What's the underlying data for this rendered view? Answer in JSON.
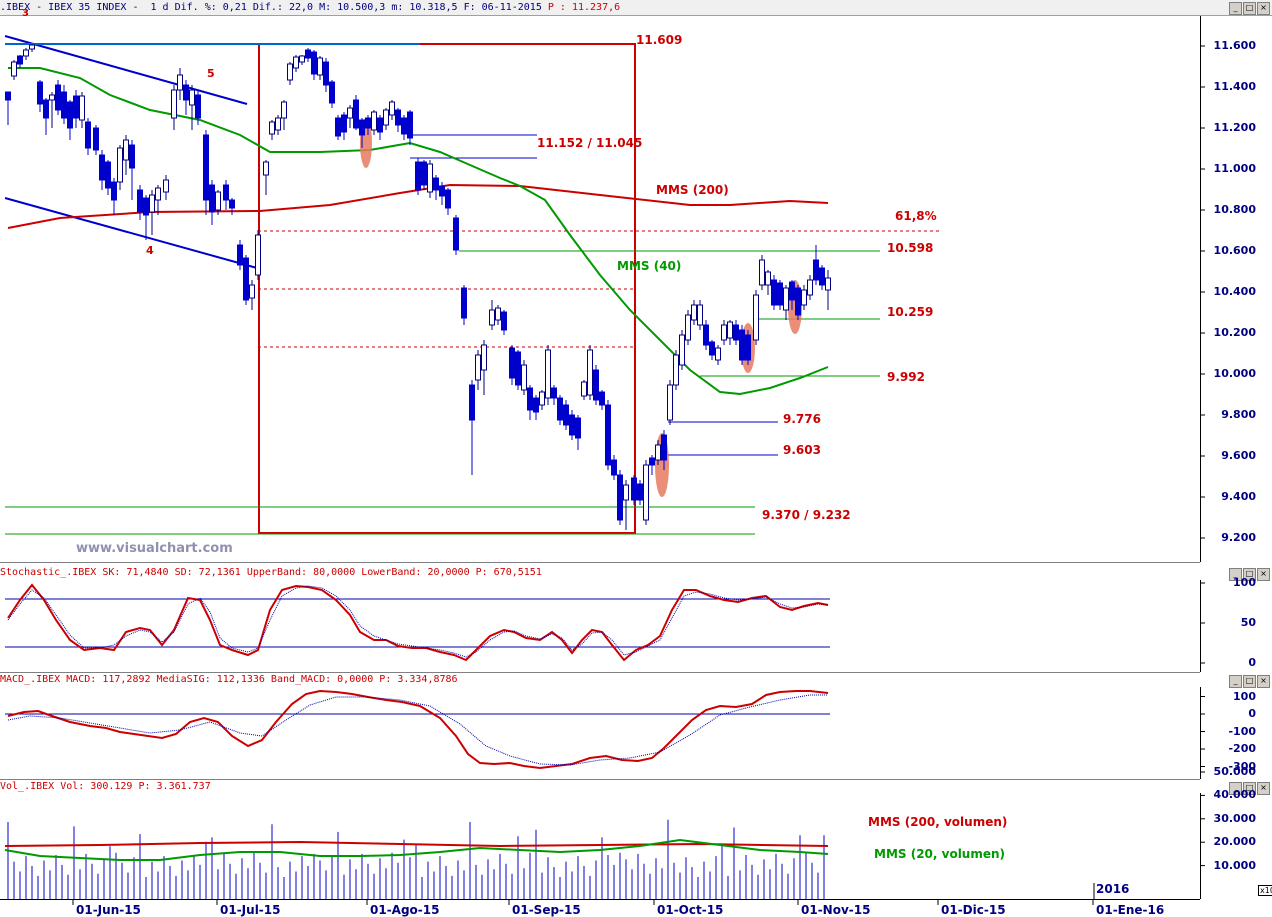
{
  "main": {
    "header": ".IBEX - IBEX 35 INDEX -  1 d Dif. %: 0,21 Dif.: 22,0 M: 10.500,3 m: 10.318,5 F: 06-11-2015",
    "header_close": "P : 11.237,6",
    "y_ticks": [
      "11.600",
      "11.400",
      "11.200",
      "11.000",
      "10.800",
      "10.600",
      "10.400",
      "10.200",
      "10.000",
      "9.800",
      "9.600",
      "9.400",
      "9.200"
    ],
    "wave_labels": [
      "3",
      "4",
      "5"
    ],
    "annotations": {
      "a1": "11.609",
      "a2": "11.152 / 11.045",
      "a3": "MMS (200)",
      "a4": "61,8%",
      "a5": "10.598",
      "a6": "MMS (40)",
      "a7": "10.259",
      "a8": "9.992",
      "a9": "9.776",
      "a10": "9.603",
      "a11": "9.370 / 9.232"
    },
    "watermark": "www.visualchart.com",
    "colors": {
      "up_candle": "#ffffff",
      "down_candle": "#0000cc",
      "mms200": "#cc0000",
      "mms40": "#009900",
      "channel": "#0000cc",
      "box": "#cc0000",
      "highlight": "#e87a60"
    }
  },
  "stochastic": {
    "header": "Stochastic_.IBEX SK: 71,4840 SD: 72,1361 UpperBand: 80,0000 LowerBand: 20,0000 P: 670,5151",
    "y_ticks": [
      "100",
      "50",
      "0"
    ]
  },
  "macd": {
    "header": "MACD_.IBEX MACD: 117,2892 MediaSIG: 112,1336 Band_MACD: 0,0000 P: 3.334,8786",
    "y_ticks": [
      "100",
      "0",
      "-100",
      "-200",
      "-300"
    ]
  },
  "volume": {
    "header": "Vol_.IBEX Vol: 300.129 P: 3.361.737",
    "y_ticks": [
      "50.000",
      "40.000",
      "30.000",
      "20.000",
      "10.000"
    ],
    "legend_200": "MMS (200, volumen)",
    "legend_20": "MMS (20, volumen)",
    "scale_badge": "x10"
  },
  "x_axis": {
    "labels": [
      "01-Jun-15",
      "01-Jul-15",
      "01-Ago-15",
      "01-Sep-15",
      "01-Oct-15",
      "01-Nov-15",
      "01-Dic-15",
      "01-Ene-16"
    ],
    "year_label": "2016"
  },
  "chart_data": {
    "type": "candlestick",
    "price_range": [
      9200,
      11700
    ],
    "moving_averages": [
      "MMS (200)",
      "MMS (40)"
    ],
    "levels": [
      11609,
      11152,
      11045,
      10598,
      10259,
      9992,
      9776,
      9603,
      9370,
      9232
    ],
    "fib_label": "61,8%",
    "indicators": {
      "stochastic": {
        "sk": 71.484,
        "sd": 72.1361,
        "upper": 80,
        "lower": 20
      },
      "macd": {
        "macd": 117.2892,
        "signal": 112.1336,
        "band": 0
      },
      "volume": {
        "last": 300129
      }
    }
  }
}
